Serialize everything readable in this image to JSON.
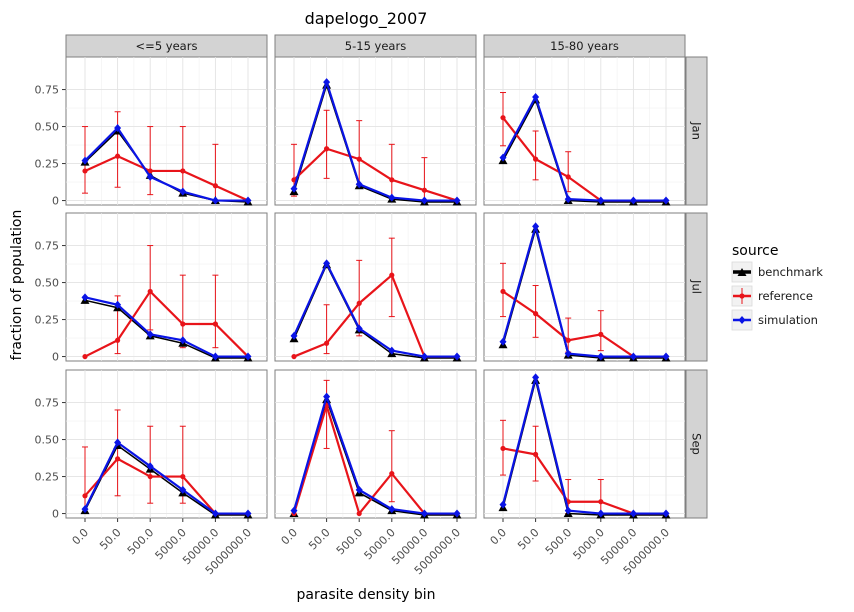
{
  "chart_data": {
    "type": "line",
    "title": "dapelogo_2007",
    "xlabel": "parasite density bin",
    "ylabel": "fraction of population",
    "categories": [
      "0.0",
      "50.0",
      "500.0",
      "5000.0",
      "50000.0",
      "5000000.0"
    ],
    "y_ticks": [
      "0",
      "0.25",
      "0.50",
      "0.75"
    ],
    "ylim": [
      -0.03,
      0.97
    ],
    "grid": true,
    "legend": {
      "title": "source",
      "position": "right",
      "entries": [
        "benchmark",
        "reference",
        "simulation"
      ]
    },
    "colors": {
      "benchmark": "#000000",
      "reference": "#e8141a",
      "simulation": "#0a14e6"
    },
    "col_facets": [
      "<=5 years",
      "5-15 years",
      "15-80 years"
    ],
    "row_facets": [
      "Jan",
      "Jul",
      "Sep"
    ],
    "panels": [
      {
        "row": "Jan",
        "col": "<=5 years",
        "benchmark": [
          0.26,
          0.47,
          0.17,
          0.05,
          0.0,
          -0.01
        ],
        "reference": [
          0.2,
          0.3,
          0.2,
          0.2,
          0.1,
          0.0
        ],
        "reference_err_low": [
          0.05,
          0.09,
          0.04,
          0.05,
          0.0,
          0.0
        ],
        "reference_err_high": [
          0.5,
          0.6,
          0.5,
          0.5,
          0.38,
          0.0
        ],
        "simulation": [
          0.27,
          0.49,
          0.16,
          0.06,
          0.0,
          0.0
        ]
      },
      {
        "row": "Jan",
        "col": "5-15 years",
        "benchmark": [
          0.06,
          0.78,
          0.1,
          0.01,
          -0.01,
          -0.01
        ],
        "reference": [
          0.14,
          0.35,
          0.28,
          0.14,
          0.07,
          0.0
        ],
        "reference_err_low": [
          0.03,
          0.15,
          0.11,
          0.02,
          0.0,
          0.0
        ],
        "reference_err_high": [
          0.38,
          0.61,
          0.54,
          0.38,
          0.29,
          0.0
        ],
        "simulation": [
          0.08,
          0.8,
          0.11,
          0.02,
          0.0,
          0.0
        ]
      },
      {
        "row": "Jan",
        "col": "15-80 years",
        "benchmark": [
          0.27,
          0.68,
          0.0,
          -0.01,
          -0.01,
          -0.01
        ],
        "reference": [
          0.56,
          0.28,
          0.16,
          0.0,
          0.0,
          0.0
        ],
        "reference_err_low": [
          0.37,
          0.14,
          0.06,
          0.0,
          0.0,
          0.0
        ],
        "reference_err_high": [
          0.73,
          0.47,
          0.33,
          0.0,
          0.0,
          0.0
        ],
        "simulation": [
          0.29,
          0.7,
          0.01,
          0.0,
          0.0,
          0.0
        ]
      },
      {
        "row": "Jul",
        "col": "<=5 years",
        "benchmark": [
          0.38,
          0.33,
          0.14,
          0.09,
          -0.01,
          -0.01
        ],
        "reference": [
          0.0,
          0.11,
          0.44,
          0.22,
          0.22,
          0.0
        ],
        "reference_err_low": [
          0.0,
          0.02,
          0.18,
          0.06,
          0.06,
          0.0
        ],
        "reference_err_high": [
          0.0,
          0.41,
          0.75,
          0.55,
          0.55,
          0.0
        ],
        "simulation": [
          0.4,
          0.35,
          0.15,
          0.11,
          0.0,
          0.0
        ]
      },
      {
        "row": "Jul",
        "col": "5-15 years",
        "benchmark": [
          0.12,
          0.62,
          0.18,
          0.02,
          -0.01,
          -0.01
        ],
        "reference": [
          0.0,
          0.09,
          0.36,
          0.55,
          0.0,
          0.0
        ],
        "reference_err_low": [
          0.0,
          0.02,
          0.14,
          0.27,
          0.0,
          0.0
        ],
        "reference_err_high": [
          0.0,
          0.35,
          0.65,
          0.8,
          0.0,
          0.0
        ],
        "simulation": [
          0.14,
          0.63,
          0.19,
          0.04,
          0.0,
          0.0
        ]
      },
      {
        "row": "Jul",
        "col": "15-80 years",
        "benchmark": [
          0.08,
          0.86,
          0.01,
          -0.01,
          -0.01,
          -0.01
        ],
        "reference": [
          0.44,
          0.29,
          0.11,
          0.15,
          0.0,
          0.0
        ],
        "reference_err_low": [
          0.27,
          0.13,
          0.03,
          0.04,
          0.0,
          0.0
        ],
        "reference_err_high": [
          0.63,
          0.48,
          0.26,
          0.31,
          0.0,
          0.0
        ],
        "simulation": [
          0.1,
          0.88,
          0.02,
          0.0,
          0.0,
          0.0
        ]
      },
      {
        "row": "Sep",
        "col": "<=5 years",
        "benchmark": [
          0.02,
          0.46,
          0.3,
          0.14,
          -0.01,
          -0.01
        ],
        "reference": [
          0.12,
          0.37,
          0.25,
          0.25,
          0.0,
          0.0
        ],
        "reference_err_low": [
          0.01,
          0.12,
          0.07,
          0.07,
          0.0,
          0.0
        ],
        "reference_err_high": [
          0.45,
          0.7,
          0.59,
          0.59,
          0.0,
          0.0
        ],
        "simulation": [
          0.03,
          0.48,
          0.32,
          0.16,
          0.0,
          0.0
        ]
      },
      {
        "row": "Sep",
        "col": "5-15 years",
        "benchmark": [
          0.0,
          0.77,
          0.14,
          0.02,
          -0.01,
          -0.01
        ],
        "reference": [
          0.0,
          0.73,
          0.0,
          0.27,
          0.0,
          0.0
        ],
        "reference_err_low": [
          0.0,
          0.44,
          0.0,
          0.08,
          0.0,
          0.0
        ],
        "reference_err_high": [
          0.0,
          0.9,
          0.0,
          0.56,
          0.0,
          0.0
        ],
        "simulation": [
          0.02,
          0.79,
          0.16,
          0.03,
          0.0,
          0.0
        ]
      },
      {
        "row": "Sep",
        "col": "15-80 years",
        "benchmark": [
          0.04,
          0.9,
          0.0,
          -0.01,
          -0.01,
          -0.01
        ],
        "reference": [
          0.44,
          0.4,
          0.08,
          0.08,
          0.0,
          0.0
        ],
        "reference_err_low": [
          0.26,
          0.22,
          0.0,
          0.0,
          0.0,
          0.0
        ],
        "reference_err_high": [
          0.63,
          0.59,
          0.23,
          0.23,
          0.0,
          0.0
        ],
        "simulation": [
          0.06,
          0.92,
          0.02,
          0.0,
          0.0,
          0.0
        ]
      }
    ]
  }
}
